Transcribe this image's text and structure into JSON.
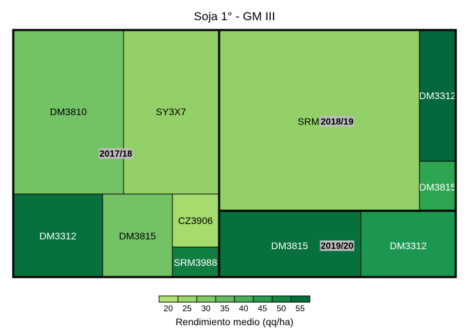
{
  "chart_data": {
    "type": "treemap",
    "title": "Soja 1° - GM III",
    "groups": [
      {
        "name": "2017/18",
        "tiles": [
          {
            "label": "DM3810",
            "value": 32,
            "color": "#73c366"
          },
          {
            "label": "SY3X7",
            "value": 28,
            "color": "#94d068"
          },
          {
            "label": "DM3312",
            "value": 52,
            "color": "#07713e"
          },
          {
            "label": "DM3815",
            "value": 32,
            "color": "#73c366"
          },
          {
            "label": "CZ3906",
            "value": 25,
            "color": "#a6db6d"
          },
          {
            "label": "SRM3988",
            "value": 50,
            "color": "#117e41"
          }
        ]
      },
      {
        "name": "2018/19",
        "tiles": [
          {
            "label": "SRM",
            "value": 28,
            "color": "#94d068"
          },
          {
            "label": "DM3312",
            "value": 54,
            "color": "#04683c"
          },
          {
            "label": "DM3815",
            "value": 42,
            "color": "#2ea551"
          }
        ]
      },
      {
        "name": "2019/20",
        "tiles": [
          {
            "label": "DM3815",
            "value": 53,
            "color": "#07713e"
          },
          {
            "label": "DM3312",
            "value": 45,
            "color": "#1c9751"
          }
        ]
      }
    ],
    "legend": {
      "title": "Rendimiento medio (qq/ha)",
      "ticks": [
        "20",
        "25",
        "30",
        "35",
        "40",
        "45",
        "50",
        "55"
      ],
      "colors": [
        "#b1e075",
        "#9bd46a",
        "#82c965",
        "#66bb5f",
        "#4aac58",
        "#2b9b4e",
        "#158642",
        "#066e3a"
      ]
    }
  }
}
